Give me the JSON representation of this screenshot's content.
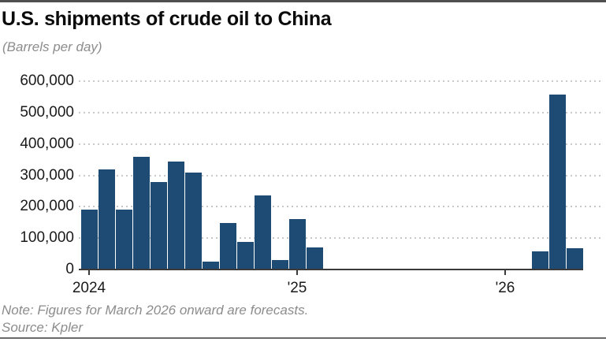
{
  "header": {
    "title": "U.S. shipments of crude oil to China",
    "subtitle": "(Barrels per day)"
  },
  "footer": {
    "note": "Note: Figures for March 2026 onward are forecasts.",
    "source": "Source: Kpler"
  },
  "colors": {
    "bar": "#1d4b73",
    "grid": "#c9c9c9",
    "axis": "#3a3a3a",
    "muted_text": "#8c8c8c",
    "text": "#1a1a1a"
  },
  "chart_data": {
    "type": "bar",
    "title": "U.S. shipments of crude oil to China",
    "subtitle": "(Barrels per day)",
    "ylabel": "Barrels per day",
    "xlabel": "",
    "ylim": [
      0,
      600000
    ],
    "grid": "horizontal dotted",
    "legend": "none",
    "note": "Note: Figures for March 2026 onward are forecasts.",
    "source": "Source: Kpler",
    "y_ticks": [
      {
        "value": 0,
        "label": "0"
      },
      {
        "value": 100000,
        "label": "100,000"
      },
      {
        "value": 200000,
        "label": "200,000"
      },
      {
        "value": 300000,
        "label": "300,000"
      },
      {
        "value": 400000,
        "label": "400,000"
      },
      {
        "value": 500000,
        "label": "500,000"
      },
      {
        "value": 600000,
        "label": "600,000"
      }
    ],
    "x_ticks": [
      {
        "month_index": 0,
        "label": "2024"
      },
      {
        "month_index": 12,
        "label": "'25"
      },
      {
        "month_index": 24,
        "label": "'26"
      }
    ],
    "x": [
      "Jan 2024",
      "Feb 2024",
      "Mar 2024",
      "Apr 2024",
      "May 2024",
      "Jun 2024",
      "Jul 2024",
      "Aug 2024",
      "Sep 2024",
      "Oct 2024",
      "Nov 2024",
      "Dec 2024",
      "Jan 2025",
      "Feb 2025",
      "Mar 2025",
      "Apr 2025",
      "May 2025",
      "Jun 2025",
      "Jul 2025",
      "Aug 2025",
      "Sep 2025",
      "Oct 2025",
      "Nov 2025",
      "Dec 2025",
      "Jan 2026",
      "Feb 2026",
      "Mar 2026",
      "Apr 2026",
      "May 2026"
    ],
    "values": [
      190000,
      320000,
      192000,
      360000,
      278000,
      345000,
      309000,
      25000,
      147000,
      89000,
      236000,
      31000,
      160000,
      70000,
      0,
      0,
      0,
      0,
      0,
      0,
      0,
      0,
      0,
      0,
      0,
      0,
      58000,
      557000,
      69000
    ],
    "forecast_from": "Mar 2026"
  }
}
